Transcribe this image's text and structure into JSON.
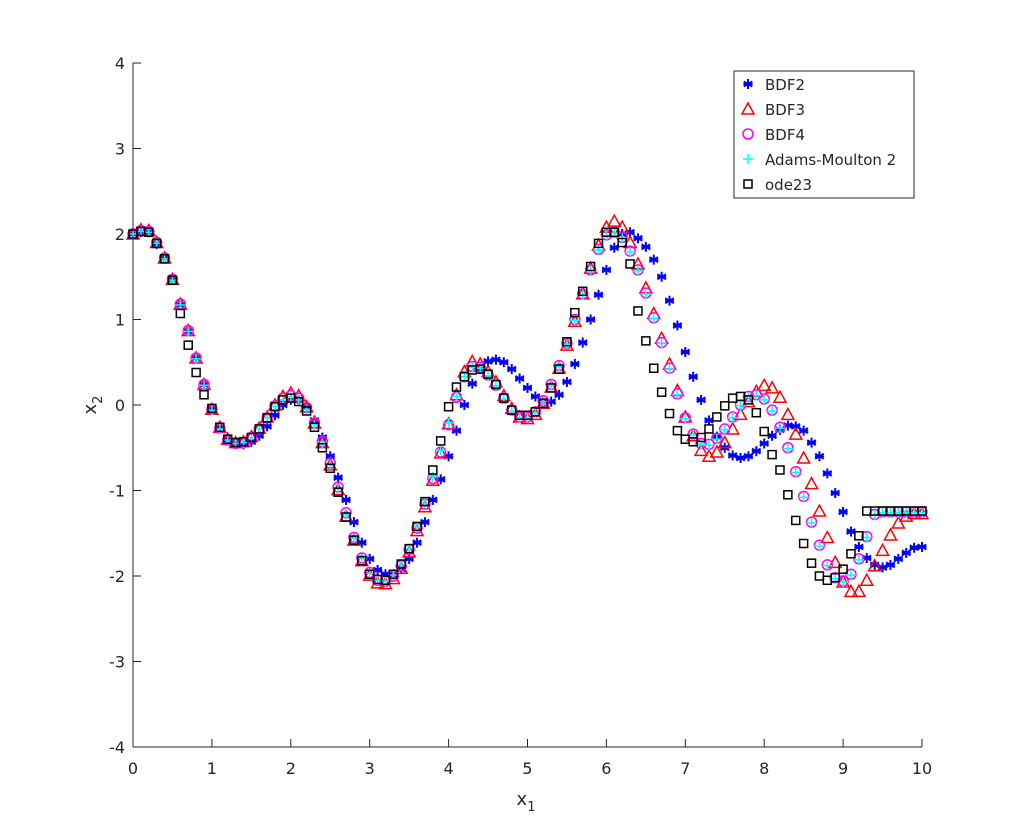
{
  "chart_data": {
    "type": "scatter",
    "title": "",
    "xlabel": "x",
    "xlabel_sub": "1",
    "ylabel": "x",
    "ylabel_sub": "2",
    "xlim": [
      0,
      10
    ],
    "ylim": [
      -4,
      4
    ],
    "xticks": [
      "0",
      "1",
      "2",
      "3",
      "4",
      "5",
      "6",
      "7",
      "8",
      "9",
      "10"
    ],
    "yticks": [
      "-4",
      "-3",
      "-2",
      "-1",
      "0",
      "1",
      "2",
      "3",
      "4"
    ],
    "grid": false,
    "legend_position": "top-right",
    "x": [
      0,
      0.1,
      0.2,
      0.3,
      0.4,
      0.5,
      0.6,
      0.7,
      0.8,
      0.9,
      1.0,
      1.1,
      1.2,
      1.3,
      1.4,
      1.5,
      1.6,
      1.7,
      1.8,
      1.9,
      2.0,
      2.1,
      2.2,
      2.3,
      2.4,
      2.5,
      2.6,
      2.7,
      2.8,
      2.9,
      3.0,
      3.1,
      3.2,
      3.3,
      3.4,
      3.5,
      3.6,
      3.7,
      3.8,
      3.9,
      4.0,
      4.1,
      4.2,
      4.3,
      4.4,
      4.5,
      4.6,
      4.7,
      4.8,
      4.9,
      5.0,
      5.1,
      5.2,
      5.3,
      5.4,
      5.5,
      5.6,
      5.7,
      5.8,
      5.9,
      6.0,
      6.1,
      6.2,
      6.3,
      6.4,
      6.5,
      6.6,
      6.7,
      6.8,
      6.9,
      7.0,
      7.1,
      7.2,
      7.3,
      7.4,
      7.5,
      7.6,
      7.7,
      7.8,
      7.9,
      8.0,
      8.1,
      8.2,
      8.3,
      8.4,
      8.5,
      8.6,
      8.7,
      8.8,
      8.9,
      9.0,
      9.1,
      9.2,
      9.3,
      9.4,
      9.5,
      9.6,
      9.7,
      9.8,
      9.9,
      10.0
    ],
    "series": [
      {
        "name": "BDF2",
        "marker": "asterisk",
        "color": "#0000ff",
        "values": [
          2.0,
          2.02,
          2.02,
          1.88,
          1.72,
          1.47,
          1.17,
          0.86,
          0.55,
          0.24,
          -0.05,
          -0.26,
          -0.4,
          -0.45,
          -0.46,
          -0.43,
          -0.36,
          -0.25,
          -0.12,
          0.0,
          0.06,
          0.06,
          -0.02,
          -0.18,
          -0.38,
          -0.6,
          -0.85,
          -1.11,
          -1.37,
          -1.61,
          -1.8,
          -1.93,
          -1.98,
          -1.98,
          -1.92,
          -1.8,
          -1.61,
          -1.37,
          -1.11,
          -0.87,
          -0.6,
          -0.3,
          0.0,
          0.25,
          0.42,
          0.51,
          0.53,
          0.5,
          0.42,
          0.31,
          0.2,
          0.1,
          0.05,
          0.04,
          0.12,
          0.27,
          0.48,
          0.73,
          1.0,
          1.29,
          1.58,
          1.84,
          2.0,
          2.02,
          1.95,
          1.85,
          1.7,
          1.5,
          1.22,
          0.93,
          0.62,
          0.33,
          0.06,
          -0.18,
          -0.37,
          -0.5,
          -0.59,
          -0.62,
          -0.6,
          -0.54,
          -0.45,
          -0.36,
          -0.29,
          -0.24,
          -0.25,
          -0.3,
          -0.44,
          -0.6,
          -0.8,
          -1.03,
          -1.25,
          -1.48,
          -1.66,
          -1.79,
          -1.87,
          -1.9,
          -1.87,
          -1.8,
          -1.73,
          -1.67,
          -1.66
        ]
      },
      {
        "name": "BDF3",
        "marker": "triangle",
        "color": "#ff0000",
        "values": [
          2.0,
          2.05,
          2.04,
          1.9,
          1.72,
          1.47,
          1.18,
          0.87,
          0.55,
          0.24,
          -0.05,
          -0.26,
          -0.4,
          -0.44,
          -0.43,
          -0.37,
          -0.27,
          -0.14,
          0.0,
          0.1,
          0.14,
          0.11,
          -0.02,
          -0.21,
          -0.44,
          -0.7,
          -0.99,
          -1.3,
          -1.58,
          -1.82,
          -1.99,
          -2.08,
          -2.09,
          -2.03,
          -1.91,
          -1.72,
          -1.47,
          -1.19,
          -0.88,
          -0.56,
          -0.22,
          0.12,
          0.39,
          0.51,
          0.48,
          0.39,
          0.27,
          0.11,
          -0.04,
          -0.14,
          -0.16,
          -0.11,
          0.02,
          0.21,
          0.43,
          0.7,
          0.98,
          1.3,
          1.6,
          1.87,
          2.08,
          2.15,
          2.08,
          1.9,
          1.65,
          1.37,
          1.07,
          0.78,
          0.48,
          0.17,
          -0.14,
          -0.36,
          -0.53,
          -0.6,
          -0.55,
          -0.44,
          -0.28,
          -0.11,
          0.04,
          0.16,
          0.23,
          0.2,
          0.09,
          -0.11,
          -0.34,
          -0.62,
          -0.92,
          -1.24,
          -1.55,
          -1.84,
          -2.07,
          -2.18,
          -2.18,
          -2.05,
          -1.88,
          -1.7,
          -1.52,
          -1.38,
          -1.3,
          -1.27,
          -1.27
        ]
      },
      {
        "name": "BDF4",
        "marker": "circle",
        "color": "#ff00ff",
        "values": [
          2.0,
          2.04,
          2.03,
          1.9,
          1.72,
          1.47,
          1.18,
          0.87,
          0.55,
          0.24,
          -0.05,
          -0.27,
          -0.41,
          -0.45,
          -0.44,
          -0.38,
          -0.28,
          -0.15,
          -0.01,
          0.08,
          0.11,
          0.08,
          -0.03,
          -0.21,
          -0.43,
          -0.68,
          -0.96,
          -1.26,
          -1.55,
          -1.79,
          -1.96,
          -2.05,
          -2.06,
          -2.0,
          -1.88,
          -1.69,
          -1.44,
          -1.16,
          -0.86,
          -0.55,
          -0.23,
          0.09,
          0.33,
          0.45,
          0.44,
          0.35,
          0.23,
          0.08,
          -0.06,
          -0.14,
          -0.14,
          -0.08,
          0.05,
          0.24,
          0.46,
          0.72,
          1.0,
          1.3,
          1.58,
          1.82,
          1.99,
          2.02,
          1.96,
          1.8,
          1.58,
          1.31,
          1.02,
          0.73,
          0.43,
          0.13,
          -0.15,
          -0.34,
          -0.45,
          -0.46,
          -0.39,
          -0.28,
          -0.14,
          0.0,
          0.1,
          0.12,
          0.07,
          -0.06,
          -0.26,
          -0.5,
          -0.78,
          -1.07,
          -1.37,
          -1.64,
          -1.87,
          -2.02,
          -2.06,
          -1.98,
          -1.8,
          -1.54,
          -1.28,
          -1.25,
          -1.25,
          -1.25,
          -1.25,
          -1.25,
          -1.25
        ]
      },
      {
        "name": "Adams-Moulton 2",
        "marker": "plus",
        "color": "#00ffff",
        "values": [
          2.0,
          2.03,
          2.02,
          1.89,
          1.71,
          1.46,
          1.17,
          0.86,
          0.54,
          0.23,
          -0.06,
          -0.28,
          -0.41,
          -0.45,
          -0.44,
          -0.38,
          -0.28,
          -0.15,
          -0.02,
          0.06,
          0.09,
          0.06,
          -0.05,
          -0.23,
          -0.45,
          -0.7,
          -0.98,
          -1.28,
          -1.56,
          -1.8,
          -1.97,
          -2.05,
          -2.06,
          -1.99,
          -1.87,
          -1.68,
          -1.43,
          -1.15,
          -0.84,
          -0.53,
          -0.21,
          0.1,
          0.33,
          0.44,
          0.43,
          0.34,
          0.22,
          0.07,
          -0.07,
          -0.15,
          -0.15,
          -0.09,
          0.04,
          0.23,
          0.45,
          0.71,
          0.99,
          1.29,
          1.57,
          1.81,
          1.98,
          2.01,
          1.95,
          1.79,
          1.57,
          1.3,
          1.01,
          0.72,
          0.42,
          0.12,
          -0.16,
          -0.35,
          -0.46,
          -0.47,
          -0.4,
          -0.29,
          -0.15,
          -0.01,
          0.09,
          0.11,
          0.06,
          -0.07,
          -0.27,
          -0.51,
          -0.79,
          -1.08,
          -1.38,
          -1.65,
          -1.88,
          -2.03,
          -2.07,
          -1.99,
          -1.81,
          -1.55,
          -1.29,
          -1.26,
          -1.26,
          -1.26,
          -1.26,
          -1.26,
          -1.26
        ]
      },
      {
        "name": "ode23",
        "marker": "square",
        "color": "#000000",
        "values": [
          2.0,
          2.03,
          2.02,
          1.89,
          1.71,
          1.46,
          1.07,
          0.7,
          0.38,
          0.12,
          -0.04,
          -0.26,
          -0.4,
          -0.44,
          -0.43,
          -0.38,
          -0.28,
          -0.15,
          -0.02,
          0.06,
          0.08,
          0.04,
          -0.07,
          -0.26,
          -0.5,
          -0.74,
          -1.02,
          -1.31,
          -1.58,
          -1.82,
          -1.98,
          -2.04,
          -2.05,
          -1.98,
          -1.86,
          -1.68,
          -1.42,
          -1.13,
          -0.76,
          -0.42,
          -0.02,
          0.21,
          0.33,
          0.41,
          0.42,
          0.36,
          0.24,
          0.08,
          -0.06,
          -0.12,
          -0.12,
          -0.08,
          0.02,
          0.2,
          0.42,
          0.74,
          1.08,
          1.33,
          1.62,
          1.89,
          2.02,
          2.02,
          1.9,
          1.65,
          1.1,
          0.75,
          0.43,
          0.15,
          -0.1,
          -0.3,
          -0.4,
          -0.43,
          -0.38,
          -0.28,
          -0.14,
          -0.01,
          0.08,
          0.1,
          0.06,
          -0.09,
          -0.31,
          -0.58,
          -0.76,
          -1.05,
          -1.35,
          -1.62,
          -1.85,
          -2.0,
          -2.05,
          -2.02,
          -1.92,
          -1.74,
          -1.53,
          -1.24,
          -1.24,
          -1.24,
          -1.24,
          -1.24,
          -1.24,
          -1.24,
          -1.24
        ]
      }
    ]
  }
}
